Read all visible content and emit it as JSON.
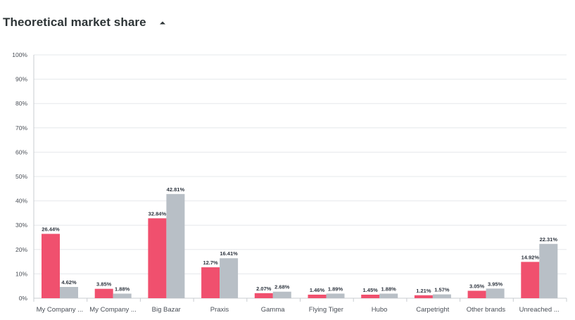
{
  "header": {
    "title": "Theoretical market share",
    "toggle_icon": "caret-up-icon"
  },
  "colors": {
    "series_1": "#f0506e",
    "series_2": "#b8bfc6",
    "grid": "#e6e8eb",
    "axis": "#c9ccd1"
  },
  "chart_data": {
    "type": "bar",
    "title": "Theoretical market share",
    "xlabel": "",
    "ylabel": "",
    "ylim": [
      0,
      100
    ],
    "yticks": [
      "0%",
      "10%",
      "20%",
      "30%",
      "40%",
      "50%",
      "60%",
      "70%",
      "80%",
      "90%",
      "100%"
    ],
    "grid": true,
    "legend": "none",
    "categories": [
      "My Company ...",
      "My Company ...",
      "Big Bazar",
      "Praxis",
      "Gamma",
      "Flying Tiger",
      "Hubo",
      "Carpetright",
      "Other brands",
      "Unreached ..."
    ],
    "series": [
      {
        "values": [
          26.44,
          3.85,
          32.84,
          12.7,
          2.07,
          1.46,
          1.45,
          1.21,
          3.05,
          14.92
        ],
        "labels": [
          "26.44%",
          "3.85%",
          "32.84%",
          "12.7%",
          "2.07%",
          "1.46%",
          "1.45%",
          "1.21%",
          "3.05%",
          "14.92%"
        ]
      },
      {
        "values": [
          4.62,
          1.88,
          42.81,
          16.41,
          2.68,
          1.89,
          1.88,
          1.57,
          3.95,
          22.31
        ],
        "labels": [
          "4.62%",
          "1.88%",
          "42.81%",
          "16.41%",
          "2.68%",
          "1.89%",
          "1.88%",
          "1.57%",
          "3.95%",
          "22.31%"
        ]
      }
    ]
  }
}
